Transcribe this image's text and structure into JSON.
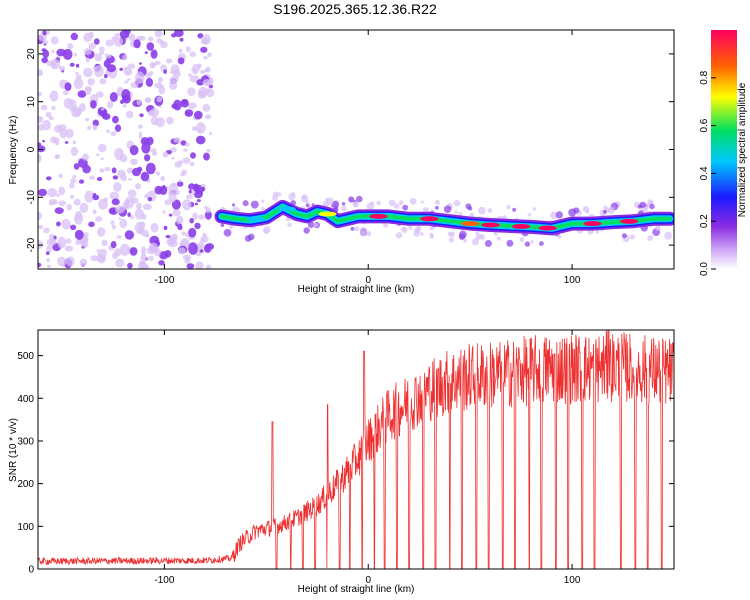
{
  "figure_title": "S196.2025.365.12.36.R22",
  "colors": {
    "snr_line": "#ee3030",
    "scatter_noise": "#8a3ee8",
    "scatter_noise_light": "#d8c0f6",
    "ridge_colormap": [
      "#ffffff",
      "#cfa6f5",
      "#8a2be2",
      "#1a1aff",
      "#00c8ff",
      "#00e060",
      "#ffff00",
      "#ff6000",
      "#ff0060"
    ]
  },
  "chart_data": [
    {
      "type": "heatmap",
      "title": "S196.2025.365.12.36.R22",
      "xlabel": "Height of straight line (km)",
      "ylabel": "Frequency (Hz)",
      "xlim": [
        -162,
        150
      ],
      "ylim": [
        -25,
        25
      ],
      "xticks": [
        -100,
        0,
        100
      ],
      "yticks": [
        20,
        10,
        0,
        -10,
        -20
      ],
      "noise_region_x": [
        -162,
        -77
      ],
      "ridge": {
        "x": [
          -72,
          -65,
          -58,
          -50,
          -42,
          -35,
          -30,
          -25,
          -20,
          -15,
          -10,
          -5,
          0,
          10,
          20,
          30,
          40,
          50,
          60,
          70,
          80,
          90,
          95,
          100,
          110,
          120,
          130,
          140,
          148
        ],
        "frequency": [
          -14,
          -14.5,
          -14.8,
          -14.2,
          -12,
          -13.5,
          -14,
          -13,
          -13.5,
          -15,
          -14.5,
          -14,
          -14,
          -14,
          -14.5,
          -14.5,
          -15,
          -15.5,
          -15.8,
          -16,
          -16.2,
          -16.5,
          -16,
          -15.5,
          -15.5,
          -15.2,
          -15,
          -14.5,
          -14.5
        ]
      },
      "colorbar": {
        "label": "Normalized spectral amplitude",
        "range": [
          0,
          1
        ],
        "ticks": [
          "0.0",
          "0.2",
          "0.4",
          "0.6",
          "0.8"
        ]
      }
    },
    {
      "type": "line",
      "xlabel": "Height of straight line (km)",
      "ylabel": "SNR (10 * v/v)",
      "xlim": [
        -162,
        150
      ],
      "ylim": [
        0,
        560
      ],
      "xticks": [
        -100,
        0,
        100
      ],
      "yticks": [
        0,
        100,
        200,
        300,
        400,
        500
      ],
      "series": [
        {
          "name": "SNR",
          "envelope_x": [
            -162,
            -80,
            -67,
            -63,
            -55,
            -45,
            -35,
            -25,
            -15,
            -5,
            0,
            10,
            20,
            30,
            40,
            50,
            60,
            70,
            80,
            90,
            100,
            110,
            120,
            130,
            140,
            150
          ],
          "envelope_mean": [
            18,
            20,
            25,
            60,
            90,
            100,
            120,
            150,
            200,
            260,
            300,
            360,
            390,
            420,
            440,
            450,
            455,
            460,
            465,
            470,
            470,
            470,
            475,
            470,
            465,
            460
          ],
          "peaks": [
            {
              "x": -47,
              "y": 345
            },
            {
              "x": -20,
              "y": 385
            },
            {
              "x": -2,
              "y": 510
            },
            {
              "x": 118,
              "y": 560
            }
          ],
          "dropouts_x": [
            -45,
            -38,
            -32,
            -26,
            -20,
            -14,
            -9,
            -3,
            3,
            8,
            14,
            20,
            27,
            33,
            40,
            46,
            53,
            59,
            66,
            72,
            79,
            85,
            92,
            98,
            105,
            111,
            118,
            124,
            131,
            137,
            144
          ]
        }
      ]
    }
  ]
}
